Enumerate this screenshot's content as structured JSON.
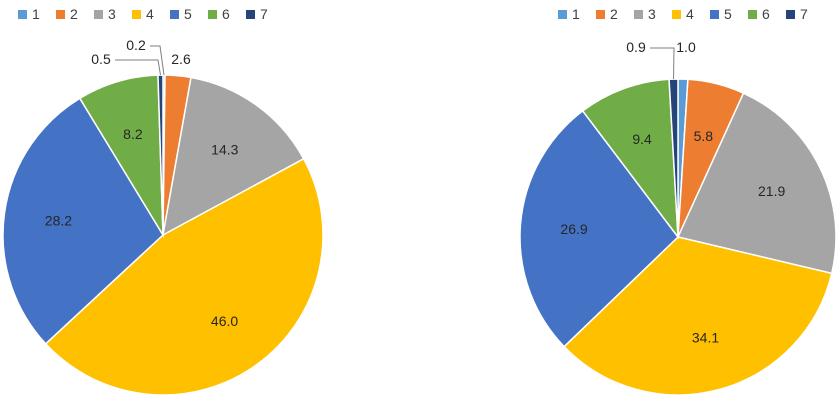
{
  "colors": [
    "#5B9BD5",
    "#ED7D31",
    "#A5A5A5",
    "#FFC000",
    "#4472C4",
    "#70AD47",
    "#264478"
  ],
  "chart_data": [
    {
      "type": "pie",
      "legend_position": "top",
      "categories": [
        "1",
        "2",
        "3",
        "4",
        "5",
        "6",
        "7"
      ],
      "values": [
        0.2,
        2.6,
        14.3,
        46.0,
        28.2,
        8.2,
        0.5
      ],
      "labels": [
        "0.2",
        "2.6",
        "14.3",
        "46.0",
        "28.2",
        "8.2",
        "0.5"
      ]
    },
    {
      "type": "pie",
      "legend_position": "top",
      "categories": [
        "1",
        "2",
        "3",
        "4",
        "5",
        "6",
        "7"
      ],
      "values": [
        1.0,
        5.8,
        21.9,
        34.1,
        26.9,
        9.4,
        0.9
      ],
      "labels": [
        "1.0",
        "5.8",
        "21.9",
        "34.1",
        "26.9",
        "9.4",
        "0.9"
      ]
    }
  ]
}
